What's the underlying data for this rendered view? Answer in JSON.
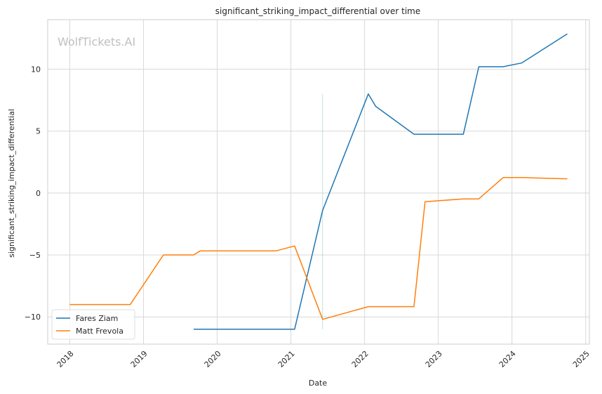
{
  "chart_data": {
    "type": "line",
    "title": "significant_striking_impact_differential over time",
    "xlabel": "Date",
    "ylabel": "significant_striking_impact_differential",
    "watermark": "WolfTickets.AI",
    "x_ticks": [
      "2018",
      "2019",
      "2020",
      "2021",
      "2022",
      "2023",
      "2024",
      "2025"
    ],
    "y_ticks": [
      -10,
      -5,
      0,
      5,
      10
    ],
    "xlim": [
      2017.7,
      2025.05
    ],
    "ylim": [
      -12.2,
      14.0
    ],
    "grid": true,
    "legend_position": "lower-left",
    "series": [
      {
        "name": "Fares Ziam",
        "color": "#1f77b4",
        "points": [
          [
            2019.68,
            -11.0
          ],
          [
            2021.05,
            -11.0
          ],
          [
            2021.43,
            -1.4
          ],
          [
            2022.05,
            8.0
          ],
          [
            2022.15,
            7.0
          ],
          [
            2022.67,
            4.75
          ],
          [
            2023.34,
            4.75
          ],
          [
            2023.55,
            10.2
          ],
          [
            2023.88,
            10.2
          ],
          [
            2024.13,
            10.5
          ],
          [
            2024.75,
            12.85
          ]
        ]
      },
      {
        "name": "Matt Frevola",
        "color": "#ff7f0e",
        "points": [
          [
            2018.0,
            -9.0
          ],
          [
            2018.82,
            -9.0
          ],
          [
            2019.27,
            -5.0
          ],
          [
            2019.68,
            -5.0
          ],
          [
            2019.77,
            -4.67
          ],
          [
            2020.8,
            -4.67
          ],
          [
            2021.05,
            -4.27
          ],
          [
            2021.43,
            -10.2
          ],
          [
            2022.05,
            -9.17
          ],
          [
            2022.67,
            -9.17
          ],
          [
            2022.82,
            -0.7
          ],
          [
            2023.34,
            -0.47
          ],
          [
            2023.55,
            -0.47
          ],
          [
            2023.88,
            1.25
          ],
          [
            2024.13,
            1.25
          ],
          [
            2024.75,
            1.15
          ]
        ]
      }
    ],
    "annotation_line": {
      "x": 2021.43,
      "y_from": -11.0,
      "y_to": 8.0,
      "color": "#8fd0c0"
    }
  }
}
